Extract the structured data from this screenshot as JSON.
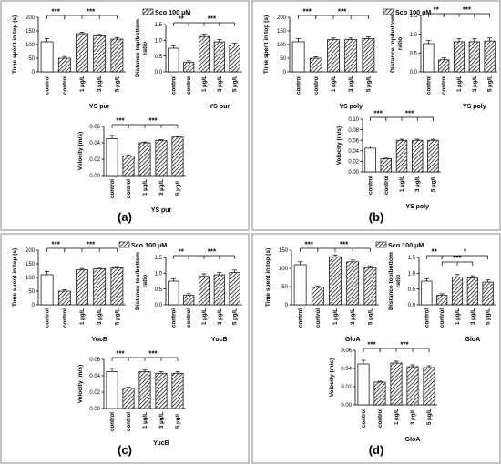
{
  "legend_label": "Sco 100 µM",
  "categories": [
    "control",
    "control",
    "1 µg/L",
    "3 µg/L",
    "5 µg/L"
  ],
  "sig": {
    "s3": "***",
    "s2": "**",
    "s1": "*"
  },
  "panels": [
    {
      "label": "(a)",
      "charts": [
        {
          "ylabel": "Time spent in top (s)",
          "xlabel": "YS pur",
          "ylim": [
            0,
            200
          ],
          "yticks": [
            0,
            50,
            100,
            150,
            200
          ],
          "values": [
            110,
            50,
            140,
            132,
            120
          ],
          "errors": [
            12,
            6,
            5,
            5,
            6
          ],
          "sig": [
            "***",
            "***"
          ]
        },
        {
          "ylabel": "Distance top/bottom ratio",
          "xlabel": "YS pur",
          "ylim": [
            0,
            1.5
          ],
          "yticks": [
            0.0,
            0.5,
            1.0,
            1.5
          ],
          "values": [
            0.75,
            0.3,
            1.12,
            0.95,
            0.85
          ],
          "errors": [
            0.08,
            0.05,
            0.08,
            0.08,
            0.06
          ],
          "sig": [
            "**",
            "***"
          ]
        },
        {
          "ylabel": "Velocity (m/s)",
          "xlabel": "YS pur",
          "ylim": [
            0,
            0.06
          ],
          "yticks": [
            0.0,
            0.02,
            0.04,
            0.06
          ],
          "values": [
            0.045,
            0.024,
            0.04,
            0.043,
            0.047
          ],
          "errors": [
            0.004,
            0.001,
            0.001,
            0.001,
            0.001
          ],
          "sig": [
            "***",
            "***"
          ]
        }
      ]
    },
    {
      "label": "(b)",
      "charts": [
        {
          "ylabel": "Time spent in top (s)",
          "xlabel": "YS poly",
          "ylim": [
            0,
            200
          ],
          "yticks": [
            0,
            50,
            100,
            150,
            200
          ],
          "values": [
            110,
            50,
            118,
            118,
            122
          ],
          "errors": [
            12,
            5,
            6,
            6,
            6
          ],
          "sig": [
            "***",
            "***"
          ]
        },
        {
          "ylabel": "Distance top/bottom ratio",
          "xlabel": "YS poly",
          "ylim": [
            0,
            1.5
          ],
          "yticks": [
            0.0,
            0.5,
            1.0,
            1.5
          ],
          "values": [
            0.75,
            0.32,
            0.8,
            0.8,
            0.82
          ],
          "errors": [
            0.08,
            0.05,
            0.08,
            0.08,
            0.08
          ],
          "sig": [
            "**",
            "***"
          ]
        },
        {
          "ylabel": "Velocity (m/s)",
          "xlabel": "YS poly",
          "ylim": [
            0,
            0.1
          ],
          "yticks": [
            0.0,
            0.02,
            0.04,
            0.06,
            0.08,
            0.1
          ],
          "values": [
            0.045,
            0.025,
            0.06,
            0.06,
            0.06
          ],
          "errors": [
            0.004,
            0.001,
            0.002,
            0.002,
            0.002
          ],
          "sig": [
            "***",
            "***"
          ]
        }
      ]
    },
    {
      "label": "(c)",
      "charts": [
        {
          "ylabel": "Time spent in top (s)",
          "xlabel": "YucB",
          "ylim": [
            0,
            200
          ],
          "yticks": [
            0,
            50,
            100,
            150,
            200
          ],
          "values": [
            110,
            50,
            128,
            132,
            135
          ],
          "errors": [
            12,
            5,
            5,
            5,
            5
          ],
          "sig": [
            "***",
            "***"
          ]
        },
        {
          "ylabel": "Distance top/bottom ratio",
          "xlabel": "YucB",
          "ylim": [
            0,
            1.5
          ],
          "yticks": [
            0.0,
            0.5,
            1.0,
            1.5
          ],
          "values": [
            0.75,
            0.3,
            0.9,
            0.95,
            1.02
          ],
          "errors": [
            0.08,
            0.05,
            0.08,
            0.08,
            0.08
          ],
          "sig": [
            "**",
            "***"
          ]
        },
        {
          "ylabel": "Velocity (m/s)",
          "xlabel": "YucB",
          "ylim": [
            0,
            0.06
          ],
          "yticks": [
            0.0,
            0.02,
            0.04,
            0.06
          ],
          "values": [
            0.045,
            0.025,
            0.045,
            0.043,
            0.043
          ],
          "errors": [
            0.004,
            0.001,
            0.002,
            0.002,
            0.002
          ],
          "sig": [
            "***",
            "***"
          ]
        }
      ]
    },
    {
      "label": "(d)",
      "charts": [
        {
          "ylabel": "Time spent in top (s)",
          "xlabel": "GloA",
          "ylim": [
            0,
            150
          ],
          "yticks": [
            0,
            50,
            100,
            150
          ],
          "values": [
            110,
            48,
            132,
            118,
            102
          ],
          "errors": [
            8,
            4,
            5,
            5,
            5
          ],
          "sig": [
            "***",
            "***"
          ]
        },
        {
          "ylabel": "Distance top/bottom ratio",
          "xlabel": "GloA",
          "ylim": [
            0,
            1.5
          ],
          "yticks": [
            0.0,
            0.5,
            1.0,
            1.5
          ],
          "values": [
            0.75,
            0.3,
            0.88,
            0.85,
            0.72
          ],
          "errors": [
            0.08,
            0.05,
            0.08,
            0.07,
            0.07
          ],
          "sig": [
            "**",
            "***",
            "*"
          ]
        },
        {
          "ylabel": "Velocity (m/s)",
          "xlabel": "GloA",
          "ylim": [
            0,
            0.06
          ],
          "yticks": [
            0.0,
            0.02,
            0.04,
            0.06
          ],
          "values": [
            0.045,
            0.025,
            0.046,
            0.042,
            0.041
          ],
          "errors": [
            0.004,
            0.001,
            0.002,
            0.002,
            0.002
          ],
          "sig": [
            "***",
            "***"
          ]
        }
      ]
    }
  ],
  "chart_data": [
    {
      "type": "bar",
      "title": "(a)",
      "ylabel": "Time spent in top (s)",
      "xlabel": "YS pur",
      "categories": [
        "control",
        "control",
        "1 µg/L",
        "3 µg/L",
        "5 µg/L"
      ],
      "values": [
        110,
        50,
        140,
        132,
        120
      ],
      "ylim": [
        0,
        200
      ]
    },
    {
      "type": "bar",
      "title": "(a)",
      "ylabel": "Distance top/bottom ratio",
      "xlabel": "YS pur",
      "categories": [
        "control",
        "control",
        "1 µg/L",
        "3 µg/L",
        "5 µg/L"
      ],
      "values": [
        0.75,
        0.3,
        1.12,
        0.95,
        0.85
      ],
      "ylim": [
        0,
        1.5
      ]
    },
    {
      "type": "bar",
      "title": "(a)",
      "ylabel": "Velocity (m/s)",
      "xlabel": "YS pur",
      "categories": [
        "control",
        "control",
        "1 µg/L",
        "3 µg/L",
        "5 µg/L"
      ],
      "values": [
        0.045,
        0.024,
        0.04,
        0.043,
        0.047
      ],
      "ylim": [
        0,
        0.06
      ]
    },
    {
      "type": "bar",
      "title": "(b)",
      "ylabel": "Time spent in top (s)",
      "xlabel": "YS poly",
      "categories": [
        "control",
        "control",
        "1 µg/L",
        "3 µg/L",
        "5 µg/L"
      ],
      "values": [
        110,
        50,
        118,
        118,
        122
      ],
      "ylim": [
        0,
        200
      ]
    },
    {
      "type": "bar",
      "title": "(b)",
      "ylabel": "Distance top/bottom ratio",
      "xlabel": "YS poly",
      "categories": [
        "control",
        "control",
        "1 µg/L",
        "3 µg/L",
        "5 µg/L"
      ],
      "values": [
        0.75,
        0.32,
        0.8,
        0.8,
        0.82
      ],
      "ylim": [
        0,
        1.5
      ]
    },
    {
      "type": "bar",
      "title": "(b)",
      "ylabel": "Velocity (m/s)",
      "xlabel": "YS poly",
      "categories": [
        "control",
        "control",
        "1 µg/L",
        "3 µg/L",
        "5 µg/L"
      ],
      "values": [
        0.045,
        0.025,
        0.06,
        0.06,
        0.06
      ],
      "ylim": [
        0,
        0.1
      ]
    },
    {
      "type": "bar",
      "title": "(c)",
      "ylabel": "Time spent in top (s)",
      "xlabel": "YucB",
      "categories": [
        "control",
        "control",
        "1 µg/L",
        "3 µg/L",
        "5 µg/L"
      ],
      "values": [
        110,
        50,
        128,
        132,
        135
      ],
      "ylim": [
        0,
        200
      ]
    },
    {
      "type": "bar",
      "title": "(c)",
      "ylabel": "Distance top/bottom ratio",
      "xlabel": "YucB",
      "categories": [
        "control",
        "control",
        "1 µg/L",
        "3 µg/L",
        "5 µg/L"
      ],
      "values": [
        0.75,
        0.3,
        0.9,
        0.95,
        1.02
      ],
      "ylim": [
        0,
        1.5
      ]
    },
    {
      "type": "bar",
      "title": "(c)",
      "ylabel": "Velocity (m/s)",
      "xlabel": "YucB",
      "categories": [
        "control",
        "control",
        "1 µg/L",
        "3 µg/L",
        "5 µg/L"
      ],
      "values": [
        0.045,
        0.025,
        0.045,
        0.043,
        0.043
      ],
      "ylim": [
        0,
        0.06
      ]
    },
    {
      "type": "bar",
      "title": "(d)",
      "ylabel": "Time spent in top (s)",
      "xlabel": "GloA",
      "categories": [
        "control",
        "control",
        "1 µg/L",
        "3 µg/L",
        "5 µg/L"
      ],
      "values": [
        110,
        48,
        132,
        118,
        102
      ],
      "ylim": [
        0,
        150
      ]
    },
    {
      "type": "bar",
      "title": "(d)",
      "ylabel": "Distance top/bottom ratio",
      "xlabel": "GloA",
      "categories": [
        "control",
        "control",
        "1 µg/L",
        "3 µg/L",
        "5 µg/L"
      ],
      "values": [
        0.75,
        0.3,
        0.88,
        0.85,
        0.72
      ],
      "ylim": [
        0,
        1.5
      ]
    },
    {
      "type": "bar",
      "title": "(d)",
      "ylabel": "Velocity (m/s)",
      "xlabel": "GloA",
      "categories": [
        "control",
        "control",
        "1 µg/L",
        "3 µg/L",
        "5 µg/L"
      ],
      "values": [
        0.045,
        0.025,
        0.046,
        0.042,
        0.041
      ],
      "ylim": [
        0,
        0.06
      ]
    }
  ]
}
